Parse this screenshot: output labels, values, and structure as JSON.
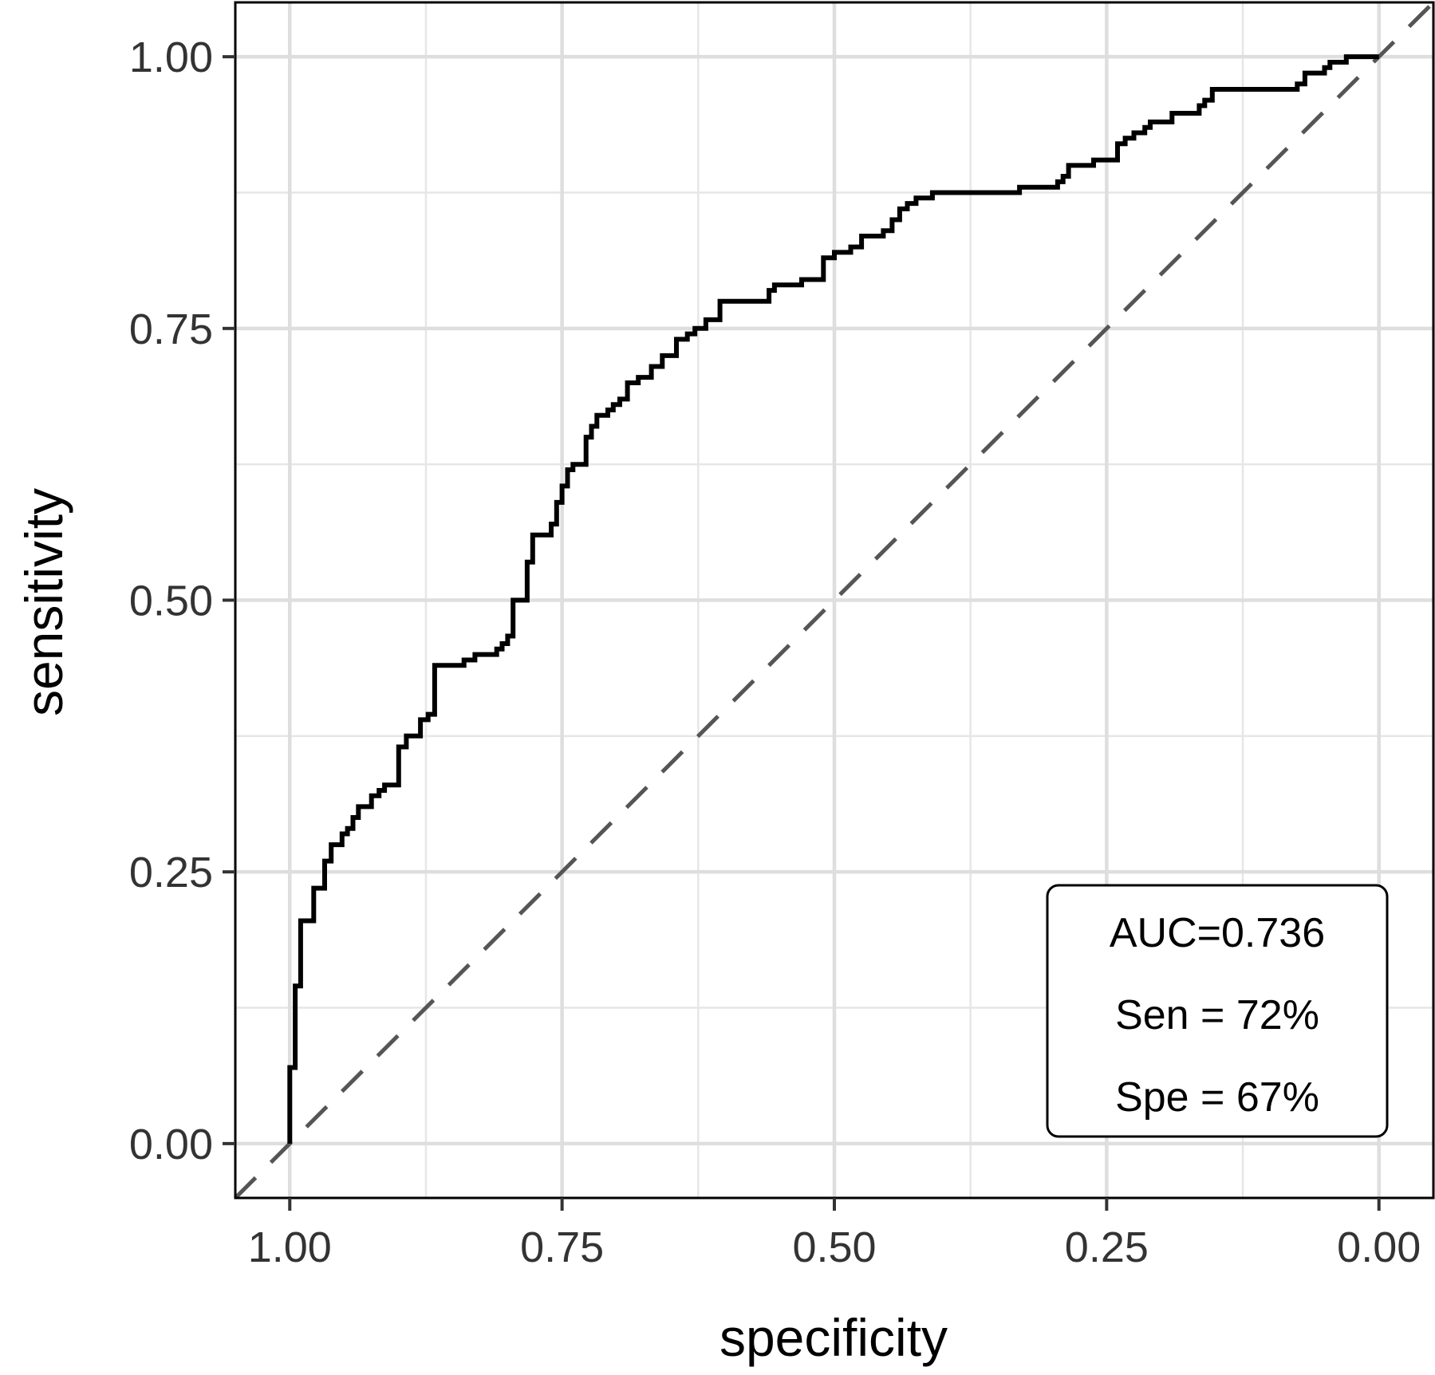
{
  "chart_data": {
    "type": "line",
    "xlabel": "specificity",
    "ylabel": "sensitivity",
    "x_reversed": true,
    "xlim": [
      1.05,
      -0.05
    ],
    "ylim": [
      -0.05,
      1.05
    ],
    "x_ticks": [
      {
        "value": 1.0,
        "label": "1.00"
      },
      {
        "value": 0.75,
        "label": "0.75"
      },
      {
        "value": 0.5,
        "label": "0.50"
      },
      {
        "value": 0.25,
        "label": "0.25"
      },
      {
        "value": 0.0,
        "label": "0.00"
      }
    ],
    "y_ticks": [
      {
        "value": 0.0,
        "label": "0.00"
      },
      {
        "value": 0.25,
        "label": "0.25"
      },
      {
        "value": 0.5,
        "label": "0.50"
      },
      {
        "value": 0.75,
        "label": "0.75"
      },
      {
        "value": 1.0,
        "label": "1.00"
      }
    ],
    "grid": true,
    "reference_line": {
      "from": [
        1.05,
        -0.05
      ],
      "to": [
        -0.05,
        1.05
      ],
      "style": "dashed",
      "color": "#555555"
    },
    "annotation": {
      "position": "bottom-right",
      "lines": [
        "AUC=0.736",
        "Sen = 72%",
        "Spe = 67%"
      ]
    },
    "series": [
      {
        "color": "#000000",
        "points": [
          [
            1.0,
            0.0
          ],
          [
            1.0,
            0.07
          ],
          [
            0.995,
            0.07
          ],
          [
            0.995,
            0.145
          ],
          [
            0.99,
            0.145
          ],
          [
            0.99,
            0.205
          ],
          [
            0.978,
            0.205
          ],
          [
            0.978,
            0.235
          ],
          [
            0.968,
            0.235
          ],
          [
            0.968,
            0.26
          ],
          [
            0.962,
            0.26
          ],
          [
            0.962,
            0.275
          ],
          [
            0.952,
            0.275
          ],
          [
            0.952,
            0.285
          ],
          [
            0.947,
            0.285
          ],
          [
            0.947,
            0.29
          ],
          [
            0.942,
            0.29
          ],
          [
            0.942,
            0.3
          ],
          [
            0.937,
            0.3
          ],
          [
            0.937,
            0.31
          ],
          [
            0.925,
            0.31
          ],
          [
            0.925,
            0.32
          ],
          [
            0.918,
            0.32
          ],
          [
            0.918,
            0.325
          ],
          [
            0.913,
            0.325
          ],
          [
            0.913,
            0.33
          ],
          [
            0.9,
            0.33
          ],
          [
            0.9,
            0.365
          ],
          [
            0.893,
            0.365
          ],
          [
            0.893,
            0.375
          ],
          [
            0.88,
            0.375
          ],
          [
            0.88,
            0.39
          ],
          [
            0.873,
            0.39
          ],
          [
            0.873,
            0.395
          ],
          [
            0.867,
            0.395
          ],
          [
            0.867,
            0.44
          ],
          [
            0.84,
            0.44
          ],
          [
            0.84,
            0.445
          ],
          [
            0.83,
            0.445
          ],
          [
            0.83,
            0.45
          ],
          [
            0.81,
            0.45
          ],
          [
            0.81,
            0.455
          ],
          [
            0.805,
            0.455
          ],
          [
            0.805,
            0.46
          ],
          [
            0.8,
            0.46
          ],
          [
            0.8,
            0.467
          ],
          [
            0.795,
            0.467
          ],
          [
            0.795,
            0.5
          ],
          [
            0.782,
            0.5
          ],
          [
            0.782,
            0.535
          ],
          [
            0.777,
            0.535
          ],
          [
            0.777,
            0.56
          ],
          [
            0.76,
            0.56
          ],
          [
            0.76,
            0.57
          ],
          [
            0.755,
            0.57
          ],
          [
            0.755,
            0.59
          ],
          [
            0.75,
            0.59
          ],
          [
            0.75,
            0.605
          ],
          [
            0.745,
            0.605
          ],
          [
            0.745,
            0.62
          ],
          [
            0.74,
            0.62
          ],
          [
            0.74,
            0.625
          ],
          [
            0.728,
            0.625
          ],
          [
            0.728,
            0.65
          ],
          [
            0.723,
            0.65
          ],
          [
            0.723,
            0.66
          ],
          [
            0.718,
            0.66
          ],
          [
            0.718,
            0.67
          ],
          [
            0.708,
            0.67
          ],
          [
            0.708,
            0.675
          ],
          [
            0.703,
            0.675
          ],
          [
            0.703,
            0.68
          ],
          [
            0.697,
            0.68
          ],
          [
            0.697,
            0.685
          ],
          [
            0.69,
            0.685
          ],
          [
            0.69,
            0.7
          ],
          [
            0.68,
            0.7
          ],
          [
            0.68,
            0.705
          ],
          [
            0.668,
            0.705
          ],
          [
            0.668,
            0.715
          ],
          [
            0.658,
            0.715
          ],
          [
            0.658,
            0.725
          ],
          [
            0.645,
            0.725
          ],
          [
            0.645,
            0.74
          ],
          [
            0.635,
            0.74
          ],
          [
            0.635,
            0.745
          ],
          [
            0.628,
            0.745
          ],
          [
            0.628,
            0.75
          ],
          [
            0.618,
            0.75
          ],
          [
            0.618,
            0.758
          ],
          [
            0.605,
            0.758
          ],
          [
            0.605,
            0.775
          ],
          [
            0.56,
            0.775
          ],
          [
            0.56,
            0.785
          ],
          [
            0.555,
            0.785
          ],
          [
            0.555,
            0.79
          ],
          [
            0.53,
            0.79
          ],
          [
            0.53,
            0.795
          ],
          [
            0.51,
            0.795
          ],
          [
            0.51,
            0.815
          ],
          [
            0.5,
            0.815
          ],
          [
            0.5,
            0.82
          ],
          [
            0.485,
            0.82
          ],
          [
            0.485,
            0.825
          ],
          [
            0.475,
            0.825
          ],
          [
            0.475,
            0.835
          ],
          [
            0.455,
            0.835
          ],
          [
            0.455,
            0.84
          ],
          [
            0.447,
            0.84
          ],
          [
            0.447,
            0.85
          ],
          [
            0.44,
            0.85
          ],
          [
            0.44,
            0.86
          ],
          [
            0.433,
            0.86
          ],
          [
            0.433,
            0.865
          ],
          [
            0.425,
            0.865
          ],
          [
            0.425,
            0.87
          ],
          [
            0.41,
            0.87
          ],
          [
            0.41,
            0.875
          ],
          [
            0.33,
            0.875
          ],
          [
            0.33,
            0.88
          ],
          [
            0.295,
            0.88
          ],
          [
            0.295,
            0.885
          ],
          [
            0.29,
            0.885
          ],
          [
            0.29,
            0.89
          ],
          [
            0.285,
            0.89
          ],
          [
            0.285,
            0.9
          ],
          [
            0.262,
            0.9
          ],
          [
            0.262,
            0.905
          ],
          [
            0.24,
            0.905
          ],
          [
            0.24,
            0.92
          ],
          [
            0.233,
            0.92
          ],
          [
            0.233,
            0.925
          ],
          [
            0.225,
            0.925
          ],
          [
            0.225,
            0.93
          ],
          [
            0.215,
            0.93
          ],
          [
            0.215,
            0.935
          ],
          [
            0.21,
            0.935
          ],
          [
            0.21,
            0.94
          ],
          [
            0.19,
            0.94
          ],
          [
            0.19,
            0.948
          ],
          [
            0.165,
            0.948
          ],
          [
            0.165,
            0.955
          ],
          [
            0.16,
            0.955
          ],
          [
            0.16,
            0.96
          ],
          [
            0.153,
            0.96
          ],
          [
            0.153,
            0.97
          ],
          [
            0.075,
            0.97
          ],
          [
            0.075,
            0.975
          ],
          [
            0.068,
            0.975
          ],
          [
            0.068,
            0.985
          ],
          [
            0.05,
            0.985
          ],
          [
            0.05,
            0.99
          ],
          [
            0.045,
            0.99
          ],
          [
            0.045,
            0.995
          ],
          [
            0.03,
            0.995
          ],
          [
            0.03,
            1.0
          ],
          [
            0.0,
            1.0
          ]
        ]
      }
    ]
  }
}
